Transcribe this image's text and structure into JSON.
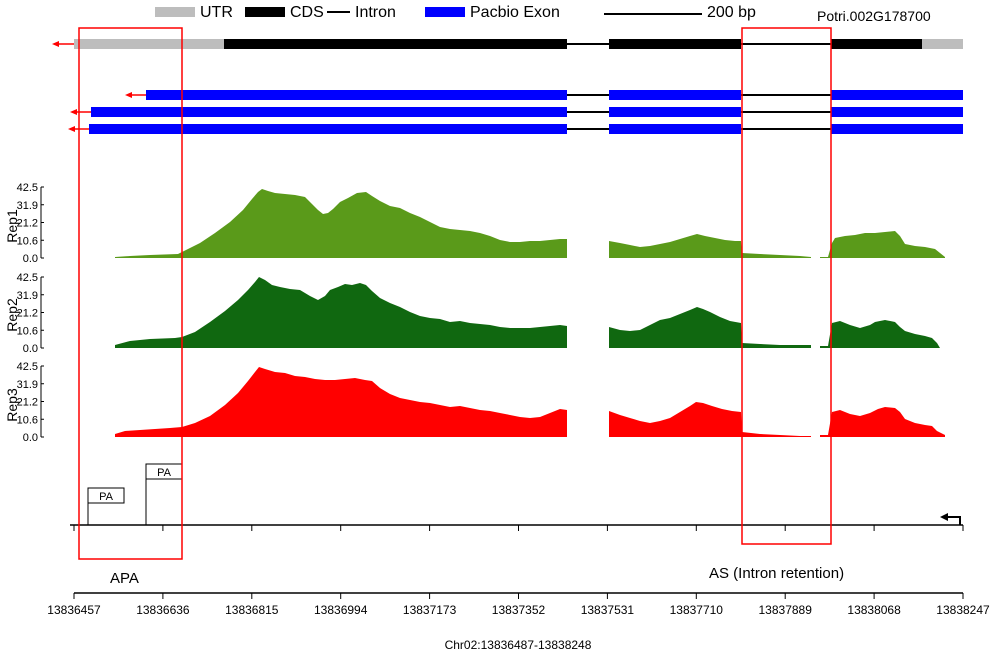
{
  "legend": {
    "utr": {
      "label": "UTR",
      "color": "#bdbdbd"
    },
    "cds": {
      "label": "CDS",
      "color": "#000000"
    },
    "intron": {
      "label": "Intron",
      "color": "#000000"
    },
    "pacbio": {
      "label": "Pacbio Exon",
      "color": "#0000ff"
    },
    "scale_label": "200 bp"
  },
  "gene_id": "Potri.002G178700",
  "strand": "minus",
  "coverage": {
    "y_ticks": [
      "42.5",
      "31.9",
      "21.2",
      "10.6",
      "0.0"
    ],
    "y_max": 42.5,
    "tracks": [
      {
        "name": "Rep1",
        "color": "#5a9a1a"
      },
      {
        "name": "Rep2",
        "color": "#106810"
      },
      {
        "name": "Rep3",
        "color": "#ff0000"
      }
    ]
  },
  "pa_sites": [
    {
      "label": "PA",
      "pos": 13836503
    },
    {
      "label": "PA",
      "pos": 13836601
    }
  ],
  "regions": {
    "apa": "APA",
    "as": "AS (Intron retention)"
  },
  "x_axis": {
    "ticks": [
      "13836457",
      "13836636",
      "13836815",
      "13836994",
      "13837173",
      "13837352",
      "13837531",
      "13837710",
      "13837889",
      "13838068",
      "13838247"
    ],
    "range": [
      13836457,
      13838247
    ]
  },
  "chrom_label": "Chr02:13836487-13838248",
  "colors": {
    "highlight_box": "#ff0000",
    "arrow": "#ff0000"
  }
}
